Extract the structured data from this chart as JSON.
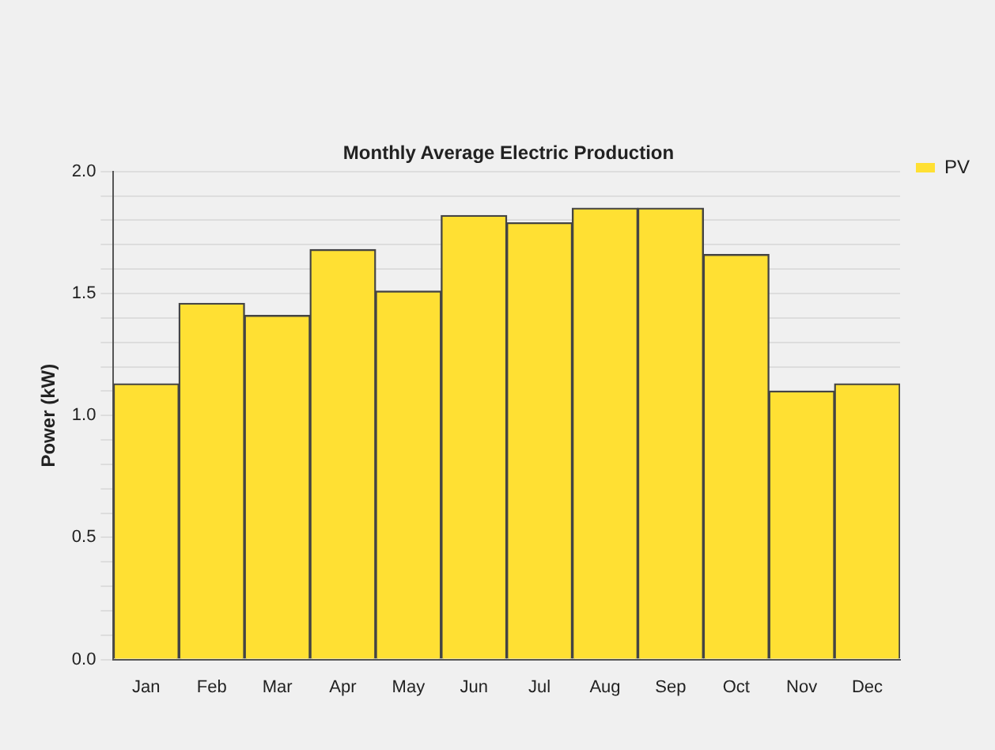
{
  "chart_data": {
    "type": "bar",
    "title": "Monthly Average Electric Production",
    "ylabel": "Power (kW)",
    "categories": [
      "Jan",
      "Feb",
      "Mar",
      "Apr",
      "May",
      "Jun",
      "Jul",
      "Aug",
      "Sep",
      "Oct",
      "Nov",
      "Dec"
    ],
    "series": [
      {
        "name": "PV",
        "color": "#ffe033",
        "values": [
          1.13,
          1.46,
          1.41,
          1.68,
          1.51,
          1.82,
          1.79,
          1.85,
          1.85,
          1.66,
          1.1,
          1.13
        ]
      }
    ],
    "ylim": [
      0,
      2
    ],
    "yticks": [
      {
        "value": 0,
        "label": "0.0"
      },
      {
        "value": 0.1,
        "label": null
      },
      {
        "value": 0.2,
        "label": null
      },
      {
        "value": 0.3,
        "label": null
      },
      {
        "value": 0.4,
        "label": null
      },
      {
        "value": 0.5,
        "label": "0.5"
      },
      {
        "value": 0.6,
        "label": null
      },
      {
        "value": 0.7,
        "label": null
      },
      {
        "value": 0.8,
        "label": null
      },
      {
        "value": 0.9,
        "label": null
      },
      {
        "value": 1,
        "label": "1.0"
      },
      {
        "value": 1.1,
        "label": null
      },
      {
        "value": 1.2,
        "label": null
      },
      {
        "value": 1.3,
        "label": null
      },
      {
        "value": 1.4,
        "label": null
      },
      {
        "value": 1.5,
        "label": "1.5"
      },
      {
        "value": 1.6,
        "label": null
      },
      {
        "value": 1.7,
        "label": null
      },
      {
        "value": 1.8,
        "label": null
      },
      {
        "value": 1.9,
        "label": null
      },
      {
        "value": 2,
        "label": "2.0"
      }
    ],
    "grid": "y",
    "legend": "top right"
  }
}
